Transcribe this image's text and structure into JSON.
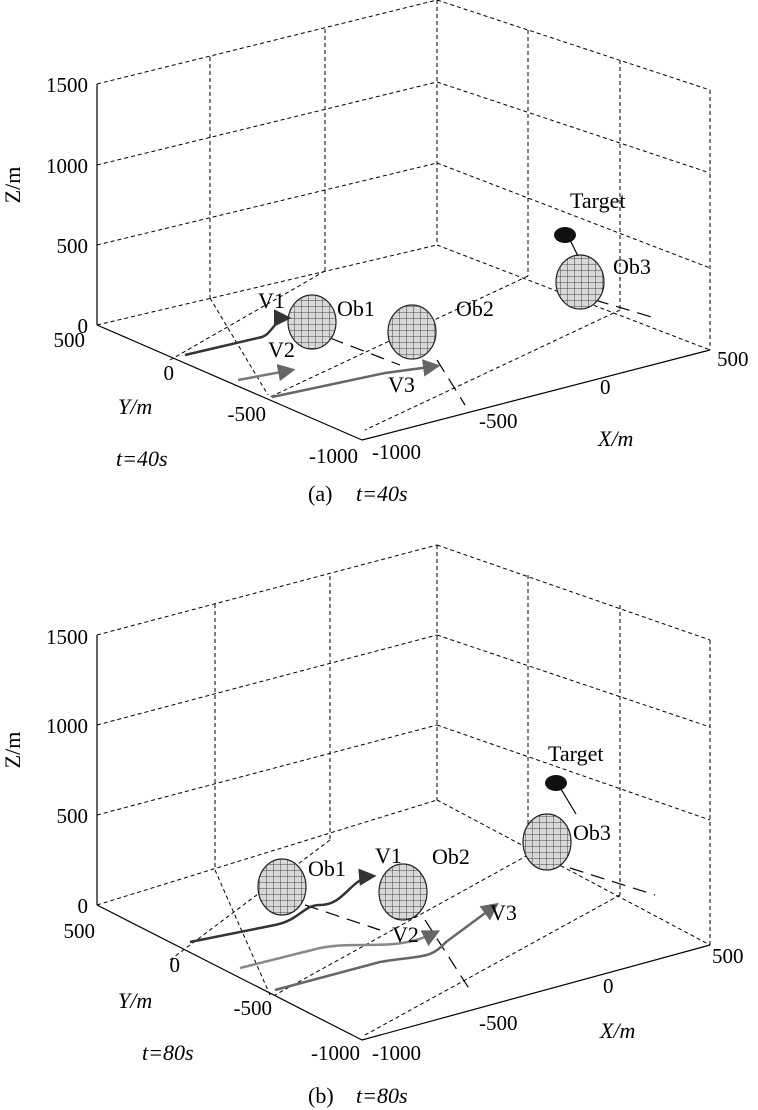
{
  "chart_data": [
    {
      "type": "3d-trajectory",
      "caption_letter": "(a)",
      "caption_time": "t=40s",
      "time_label": "t=40s",
      "xlabel": "X/m",
      "ylabel": "Y/m",
      "zlabel": "Z/m",
      "xticks": [
        "-1000",
        "-500",
        "0",
        "500"
      ],
      "yticks": [
        "-1000",
        "-500",
        "0",
        "500"
      ],
      "zticks": [
        "0",
        "500",
        "1000",
        "1500"
      ],
      "xlim": [
        -1000,
        500
      ],
      "ylim": [
        -1000,
        500
      ],
      "zlim": [
        0,
        1500
      ],
      "grid": true,
      "labels": {
        "target": "Target",
        "ob1": "Ob1",
        "ob2": "Ob2",
        "ob3": "Ob3",
        "v1": "V1",
        "v2": "V2",
        "v3": "V3"
      }
    },
    {
      "type": "3d-trajectory",
      "caption_letter": "(b)",
      "caption_time": "t=80s",
      "time_label": "t=80s",
      "xlabel": "X/m",
      "ylabel": "Y/m",
      "zlabel": "Z/m",
      "xticks": [
        "-1000",
        "-500",
        "0",
        "500"
      ],
      "yticks": [
        "-1000",
        "-500",
        "0",
        "500"
      ],
      "zticks": [
        "0",
        "500",
        "1000",
        "1500"
      ],
      "xlim": [
        -1000,
        500
      ],
      "ylim": [
        -1000,
        500
      ],
      "zlim": [
        0,
        1500
      ],
      "grid": true,
      "labels": {
        "target": "Target",
        "ob1": "Ob1",
        "ob2": "Ob2",
        "ob3": "Ob3",
        "v1": "V1",
        "v2": "V2",
        "v3": "V3"
      }
    }
  ]
}
